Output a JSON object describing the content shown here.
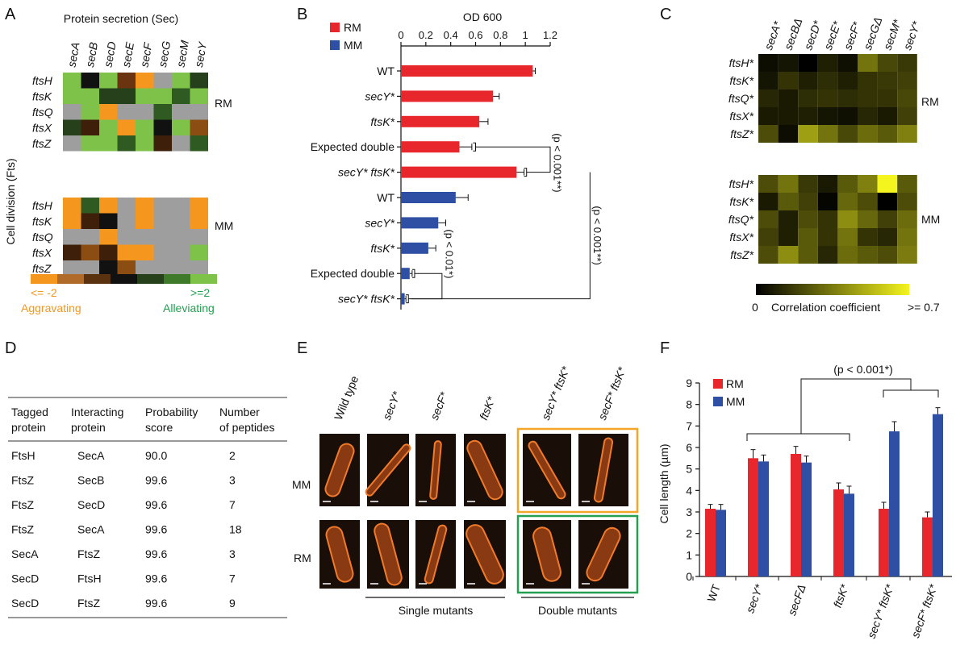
{
  "panel_letters": [
    "A",
    "B",
    "C",
    "D",
    "E",
    "F"
  ],
  "panelA": {
    "title": "Protein secretion (Sec)",
    "ylabel": "Cell division (Fts)",
    "cols": [
      "secA",
      "secB",
      "secD",
      "secE",
      "secF",
      "secG",
      "secM",
      "secY"
    ],
    "rows": [
      "ftsH",
      "ftsK",
      "ftsQ",
      "ftsX",
      "ftsZ"
    ],
    "block_labels": [
      "RM",
      "MM"
    ],
    "legend": {
      "left": "<= -2",
      "right": ">=2",
      "left_caption": "Aggravating",
      "right_caption": "Alleviating"
    },
    "colors": {
      "orange": "#f5971f",
      "brown": "#6b3410",
      "dkbrown": "#3e200a",
      "gray": "#9e9e9e",
      "black": "#111111",
      "dkgreen": "#25401b",
      "green": "#7fc24a",
      "midgreen": "#2f5a22",
      "ltbrown": "#8b4d12"
    },
    "RM": [
      [
        "green",
        "black",
        "green",
        "brown",
        "orange",
        "gray",
        "green",
        "dkgreen"
      ],
      [
        "green",
        "green",
        "dkgreen",
        "dkgreen",
        "green",
        "green",
        "midgreen",
        "green"
      ],
      [
        "gray",
        "green",
        "orange",
        "gray",
        "gray",
        "midgreen",
        "gray",
        "gray"
      ],
      [
        "dkgreen",
        "dkbrown",
        "green",
        "orange",
        "green",
        "black",
        "green",
        "ltbrown"
      ],
      [
        "gray",
        "green",
        "green",
        "midgreen",
        "green",
        "dkbrown",
        "gray",
        "midgreen"
      ]
    ],
    "MM": [
      [
        "orange",
        "midgreen",
        "orange",
        "gray",
        "orange",
        "gray",
        "gray",
        "orange"
      ],
      [
        "orange",
        "dkbrown",
        "black",
        "gray",
        "orange",
        "gray",
        "gray",
        "orange"
      ],
      [
        "gray",
        "gray",
        "orange",
        "gray",
        "gray",
        "gray",
        "gray",
        "gray"
      ],
      [
        "dkbrown",
        "ltbrown",
        "dkbrown",
        "orange",
        "orange",
        "gray",
        "gray",
        "green"
      ],
      [
        "gray",
        "gray",
        "black",
        "ltbrown",
        "gray",
        "gray",
        "gray",
        "gray"
      ]
    ],
    "legend_colors": [
      "#f5971f",
      "#b06a2a",
      "#5a3210",
      "#111111",
      "#25401b",
      "#3f7a2a",
      "#7fc24a"
    ]
  },
  "chart_data": [
    {
      "type": "bar",
      "panel": "B",
      "title": "OD 600",
      "orientation": "horizontal",
      "xlim": [
        0,
        1.2
      ],
      "xticks": [
        "0",
        "0.2",
        "0.4",
        "0.6",
        "0.8",
        "1",
        "1.2"
      ],
      "legend": [
        "RM",
        "MM"
      ],
      "categories": [
        "WT",
        "secY*",
        "ftsK*",
        "Expected double",
        "secY* ftsK*",
        "WT",
        "secY*",
        "ftsK*",
        "Expected double",
        "secY* ftsK*"
      ],
      "condition": [
        "RM",
        "RM",
        "RM",
        "RM",
        "RM",
        "MM",
        "MM",
        "MM",
        "MM",
        "MM"
      ],
      "values": [
        1.06,
        0.74,
        0.63,
        0.47,
        0.93,
        0.44,
        0.3,
        0.22,
        0.07,
        0.03
      ],
      "errors": [
        0.02,
        0.05,
        0.07,
        0.1,
        0.06,
        0.1,
        0.06,
        0.06,
        0.02,
        0.01
      ],
      "annotations": [
        "(p < 0.001**)",
        "(p < 0.01*)",
        "(p < 0.001**)"
      ]
    },
    {
      "type": "bar",
      "panel": "F",
      "ylabel": "Cell length (µm)",
      "ylim": [
        0,
        9
      ],
      "yticks": [
        "0",
        "1",
        "2",
        "3",
        "4",
        "5",
        "6",
        "7",
        "8",
        "9"
      ],
      "categories": [
        "WT",
        "secY*",
        "secFΔ",
        "ftsK*",
        "secY* ftsK*",
        "secF* ftsK*"
      ],
      "series": [
        {
          "name": "RM",
          "values": [
            3.15,
            5.5,
            5.7,
            4.05,
            3.15,
            2.75
          ],
          "errors": [
            0.2,
            0.4,
            0.35,
            0.3,
            0.3,
            0.25
          ]
        },
        {
          "name": "MM",
          "values": [
            3.1,
            5.35,
            5.3,
            3.85,
            6.75,
            7.55
          ],
          "errors": [
            0.25,
            0.3,
            0.3,
            0.35,
            0.45,
            0.3
          ]
        }
      ],
      "annotation": "(p < 0.001*)"
    }
  ],
  "panelC": {
    "cols": [
      "secA*",
      "secBΔ",
      "secD*",
      "secE*",
      "secF*",
      "secGΔ",
      "secM*",
      "secY*"
    ],
    "rows": [
      "ftsH*",
      "ftsK*",
      "ftsQ*",
      "ftsX*",
      "ftsZ*"
    ],
    "block_labels": [
      "RM",
      "MM"
    ],
    "legend_left": "0",
    "legend_mid": "Correlation coefficient",
    "legend_right": ">= 0.7",
    "RM": [
      [
        0.05,
        0.08,
        0.0,
        0.12,
        0.06,
        0.45,
        0.28,
        0.22
      ],
      [
        0.08,
        0.2,
        0.12,
        0.18,
        0.12,
        0.2,
        0.22,
        0.25
      ],
      [
        0.15,
        0.1,
        0.18,
        0.2,
        0.18,
        0.2,
        0.2,
        0.28
      ],
      [
        0.1,
        0.1,
        0.12,
        0.08,
        0.06,
        0.15,
        0.1,
        0.25
      ],
      [
        0.3,
        0.05,
        0.62,
        0.45,
        0.28,
        0.42,
        0.35,
        0.5
      ]
    ],
    "MM": [
      [
        0.3,
        0.45,
        0.22,
        0.1,
        0.35,
        0.5,
        0.95,
        0.35
      ],
      [
        0.1,
        0.35,
        0.25,
        0.02,
        0.4,
        0.3,
        0.0,
        0.3
      ],
      [
        0.3,
        0.12,
        0.3,
        0.2,
        0.55,
        0.4,
        0.25,
        0.42
      ],
      [
        0.25,
        0.12,
        0.35,
        0.2,
        0.45,
        0.2,
        0.15,
        0.45
      ],
      [
        0.3,
        0.55,
        0.35,
        0.15,
        0.42,
        0.35,
        0.3,
        0.48
      ]
    ]
  },
  "panelD": {
    "headers": [
      [
        "Tagged",
        "protein"
      ],
      [
        "Interacting",
        "protein"
      ],
      [
        "Probability",
        "score"
      ],
      [
        "Number",
        "of peptides"
      ]
    ],
    "rows": [
      [
        "FtsH",
        "SecA",
        "90.0",
        "2"
      ],
      [
        "FtsZ",
        "SecB",
        "99.6",
        "3"
      ],
      [
        "FtsZ",
        "SecD",
        "99.6",
        "7"
      ],
      [
        "FtsZ",
        "SecA",
        "99.6",
        "18"
      ],
      [
        "SecA",
        "FtsZ",
        "99.6",
        "3"
      ],
      [
        "SecD",
        "FtsH",
        "99.6",
        "7"
      ],
      [
        "SecD",
        "FtsZ",
        "99.6",
        "9"
      ]
    ]
  },
  "panelE": {
    "cols": [
      "Wild type",
      "secY*",
      "secF*",
      "ftsK*",
      "secY* ftsK*",
      "secF* ftsK*"
    ],
    "rows": [
      "MM",
      "RM"
    ],
    "group_single": "Single mutants",
    "group_double": "Double mutants",
    "box_colors": {
      "MM": "#f4a629",
      "RM": "#22a050"
    }
  }
}
